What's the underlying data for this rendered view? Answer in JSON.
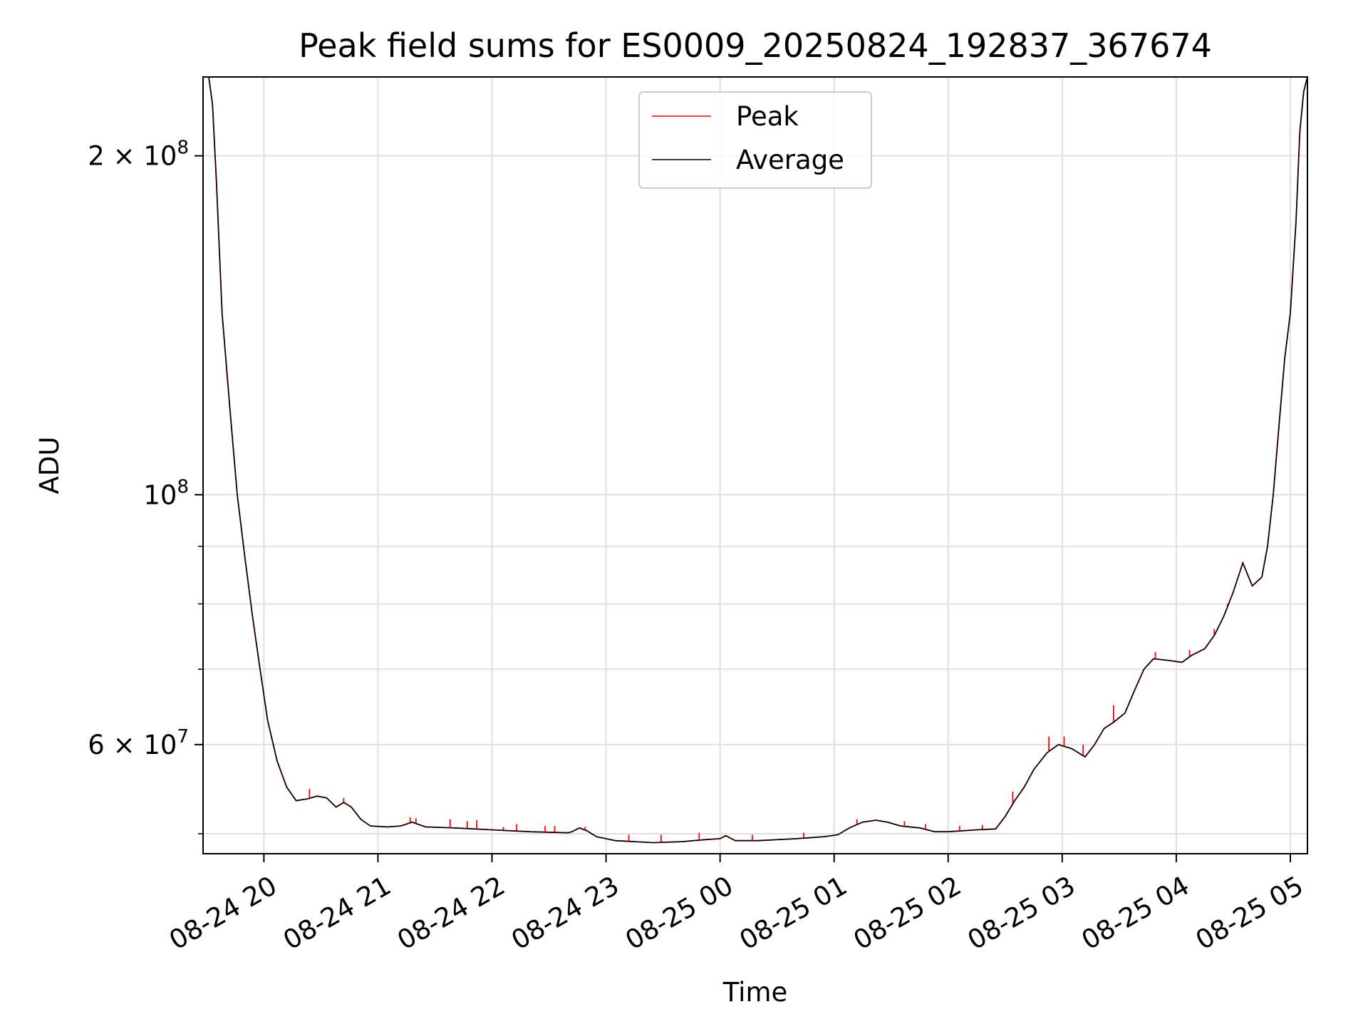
{
  "chart_data": {
    "type": "line",
    "title": "Peak field sums for ES0009_20250824_192837_367674",
    "xlabel": "Time",
    "ylabel": "ADU",
    "yscale": "log",
    "ylim": [
      48000000,
      235000000
    ],
    "xlim": [
      "2025-08-24 19:28",
      "2025-08-25 05:09"
    ],
    "grid": true,
    "legend_position": "top-center",
    "x_tick_labels": [
      "08-24 20",
      "08-24 21",
      "08-24 22",
      "08-24 23",
      "08-25 00",
      "08-25 01",
      "08-25 02",
      "08-25 03",
      "08-25 04",
      "08-25 05"
    ],
    "x_tick_times": [
      "2025-08-24 20:00",
      "2025-08-24 21:00",
      "2025-08-24 22:00",
      "2025-08-24 23:00",
      "2025-08-25 00:00",
      "2025-08-25 01:00",
      "2025-08-25 02:00",
      "2025-08-25 03:00",
      "2025-08-25 04:00",
      "2025-08-25 05:00"
    ],
    "y_major_ticks": [
      {
        "value": 200000000,
        "mantissa": "2",
        "exponent": "8"
      },
      {
        "value": 100000000,
        "mantissa": "",
        "exponent": "8"
      },
      {
        "value": 60000000,
        "mantissa": "6",
        "exponent": "7"
      }
    ],
    "y_minor_ticks": [
      50000000,
      70000000,
      80000000,
      90000000
    ],
    "series": [
      {
        "name": "Average",
        "color": "#000000",
        "points": [
          [
            "2025-08-24 19:28",
            235000000
          ],
          [
            "2025-08-24 19:31",
            235000000
          ],
          [
            "2025-08-24 19:33",
            222000000
          ],
          [
            "2025-08-24 19:35",
            190000000
          ],
          [
            "2025-08-24 19:38",
            145000000
          ],
          [
            "2025-08-24 19:42",
            120000000
          ],
          [
            "2025-08-24 19:46",
            100000000
          ],
          [
            "2025-08-24 19:50",
            88000000
          ],
          [
            "2025-08-24 19:54",
            78000000
          ],
          [
            "2025-08-24 19:58",
            70000000
          ],
          [
            "2025-08-24 20:02",
            63000000
          ],
          [
            "2025-08-24 20:07",
            58000000
          ],
          [
            "2025-08-24 20:12",
            55000000
          ],
          [
            "2025-08-24 20:17",
            53500000
          ],
          [
            "2025-08-24 20:23",
            53700000
          ],
          [
            "2025-08-24 20:28",
            54000000
          ],
          [
            "2025-08-24 20:33",
            53800000
          ],
          [
            "2025-08-24 20:38",
            52800000
          ],
          [
            "2025-08-24 20:42",
            53300000
          ],
          [
            "2025-08-24 20:46",
            52800000
          ],
          [
            "2025-08-24 20:51",
            51500000
          ],
          [
            "2025-08-24 20:56",
            50800000
          ],
          [
            "2025-08-24 21:05",
            50700000
          ],
          [
            "2025-08-24 21:12",
            50800000
          ],
          [
            "2025-08-24 21:18",
            51200000
          ],
          [
            "2025-08-24 21:25",
            50700000
          ],
          [
            "2025-08-24 21:40",
            50600000
          ],
          [
            "2025-08-24 22:00",
            50400000
          ],
          [
            "2025-08-24 22:20",
            50200000
          ],
          [
            "2025-08-24 22:40",
            50100000
          ],
          [
            "2025-08-24 22:42",
            50200000
          ],
          [
            "2025-08-24 22:46",
            50600000
          ],
          [
            "2025-08-24 22:50",
            50300000
          ],
          [
            "2025-08-24 22:55",
            49700000
          ],
          [
            "2025-08-24 23:05",
            49300000
          ],
          [
            "2025-08-24 23:25",
            49100000
          ],
          [
            "2025-08-24 23:40",
            49200000
          ],
          [
            "2025-08-24 23:52",
            49400000
          ],
          [
            "2025-08-25 00:00",
            49500000
          ],
          [
            "2025-08-25 00:03",
            49800000
          ],
          [
            "2025-08-25 00:08",
            49300000
          ],
          [
            "2025-08-25 00:20",
            49300000
          ],
          [
            "2025-08-25 00:40",
            49500000
          ],
          [
            "2025-08-25 00:55",
            49700000
          ],
          [
            "2025-08-25 01:02",
            49900000
          ],
          [
            "2025-08-25 01:08",
            50600000
          ],
          [
            "2025-08-25 01:15",
            51200000
          ],
          [
            "2025-08-25 01:22",
            51400000
          ],
          [
            "2025-08-25 01:28",
            51200000
          ],
          [
            "2025-08-25 01:35",
            50800000
          ],
          [
            "2025-08-25 01:45",
            50600000
          ],
          [
            "2025-08-25 01:53",
            50200000
          ],
          [
            "2025-08-25 02:00",
            50200000
          ],
          [
            "2025-08-25 02:15",
            50400000
          ],
          [
            "2025-08-25 02:25",
            50500000
          ],
          [
            "2025-08-25 02:30",
            51800000
          ],
          [
            "2025-08-25 02:35",
            53500000
          ],
          [
            "2025-08-25 02:40",
            55000000
          ],
          [
            "2025-08-25 02:45",
            57000000
          ],
          [
            "2025-08-25 02:52",
            59000000
          ],
          [
            "2025-08-25 02:58",
            60000000
          ],
          [
            "2025-08-25 03:05",
            59500000
          ],
          [
            "2025-08-25 03:12",
            58500000
          ],
          [
            "2025-08-25 03:17",
            60000000
          ],
          [
            "2025-08-25 03:22",
            62000000
          ],
          [
            "2025-08-25 03:27",
            62800000
          ],
          [
            "2025-08-25 03:33",
            64000000
          ],
          [
            "2025-08-25 03:38",
            67000000
          ],
          [
            "2025-08-25 03:43",
            70000000
          ],
          [
            "2025-08-25 03:48",
            71500000
          ],
          [
            "2025-08-25 03:55",
            71300000
          ],
          [
            "2025-08-25 04:03",
            71000000
          ],
          [
            "2025-08-25 04:08",
            72000000
          ],
          [
            "2025-08-25 04:15",
            73000000
          ],
          [
            "2025-08-25 04:20",
            75000000
          ],
          [
            "2025-08-25 04:25",
            78000000
          ],
          [
            "2025-08-25 04:30",
            82000000
          ],
          [
            "2025-08-25 04:35",
            87000000
          ],
          [
            "2025-08-25 04:40",
            83000000
          ],
          [
            "2025-08-25 04:45",
            84500000
          ],
          [
            "2025-08-25 04:48",
            90000000
          ],
          [
            "2025-08-25 04:51",
            100000000
          ],
          [
            "2025-08-25 04:54",
            115000000
          ],
          [
            "2025-08-25 04:57",
            132000000
          ],
          [
            "2025-08-25 05:00",
            145000000
          ],
          [
            "2025-08-25 05:03",
            175000000
          ],
          [
            "2025-08-25 05:05",
            210000000
          ],
          [
            "2025-08-25 05:07",
            228000000
          ],
          [
            "2025-08-25 05:09",
            235000000
          ]
        ]
      },
      {
        "name": "Peak",
        "color": "#ff0000",
        "points": [
          [
            "2025-08-24 20:24",
            54800000
          ],
          [
            "2025-08-24 20:42",
            53800000
          ],
          [
            "2025-08-24 21:17",
            51700000
          ],
          [
            "2025-08-24 21:20",
            51600000
          ],
          [
            "2025-08-24 21:38",
            51500000
          ],
          [
            "2025-08-24 21:47",
            51300000
          ],
          [
            "2025-08-24 21:52",
            51400000
          ],
          [
            "2025-08-24 22:06",
            50700000
          ],
          [
            "2025-08-24 22:13",
            51000000
          ],
          [
            "2025-08-24 22:28",
            50800000
          ],
          [
            "2025-08-24 22:33",
            50800000
          ],
          [
            "2025-08-24 22:49",
            50700000
          ],
          [
            "2025-08-24 23:12",
            49900000
          ],
          [
            "2025-08-24 23:29",
            49900000
          ],
          [
            "2025-08-24 23:49",
            50100000
          ],
          [
            "2025-08-25 00:17",
            49900000
          ],
          [
            "2025-08-25 00:44",
            50100000
          ],
          [
            "2025-08-25 01:12",
            51500000
          ],
          [
            "2025-08-25 01:37",
            51300000
          ],
          [
            "2025-08-25 01:48",
            51000000
          ],
          [
            "2025-08-25 02:06",
            50800000
          ],
          [
            "2025-08-25 02:18",
            50900000
          ],
          [
            "2025-08-25 02:34",
            54500000
          ],
          [
            "2025-08-25 02:53",
            61000000
          ],
          [
            "2025-08-25 03:01",
            61000000
          ],
          [
            "2025-08-25 03:11",
            60000000
          ],
          [
            "2025-08-25 03:27",
            65000000
          ],
          [
            "2025-08-25 03:49",
            72500000
          ],
          [
            "2025-08-25 04:07",
            72800000
          ],
          [
            "2025-08-25 04:20",
            76000000
          ],
          [
            "2025-08-25 04:27",
            80000000
          ]
        ]
      }
    ]
  }
}
